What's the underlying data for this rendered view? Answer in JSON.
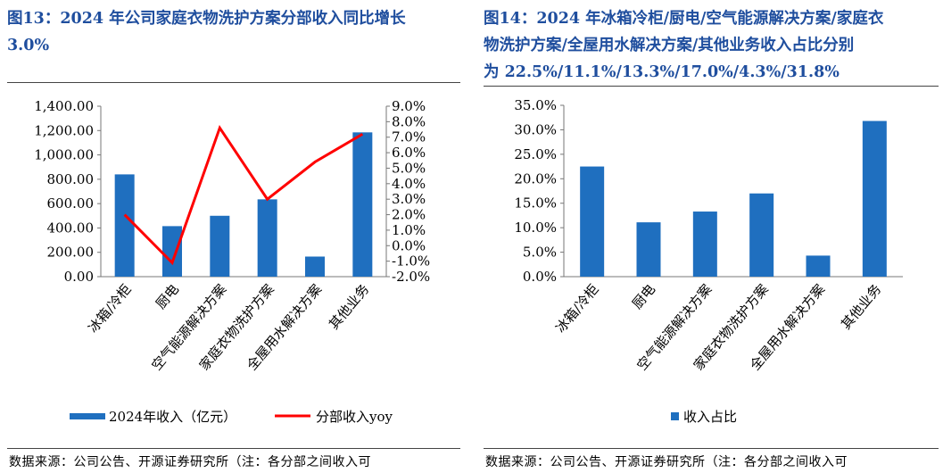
{
  "left_panel": {
    "title_line1": "图13：2024 年公司家庭衣物洗护方案分部收入同比增长",
    "title_line2": "3.0%",
    "source": "数据来源：公司公告、开源证券研究所（注：各分部之间收入可"
  },
  "right_panel": {
    "title_line1": "图14：2024 年冰箱冷柜/厨电/空气能源解决方案/家庭衣",
    "title_line2": "物洗护方案/全屋用水解决方案/其他业务收入占比分别",
    "title_line3": "为 22.5%/11.1%/13.3%/17.0%/4.3%/31.8%",
    "source": "数据来源：公司公告、开源证券研究所（注：各分部之间收入可"
  },
  "chart_data": [
    {
      "type": "bar+line",
      "categories": [
        "冰箱/冷柜",
        "厨电",
        "空气能源解决方案",
        "家庭衣物洗护方案",
        "全屋用水解决方案",
        "其他业务"
      ],
      "series": [
        {
          "name": "2024年收入（亿元）",
          "type": "bar",
          "axis": "left",
          "color": "#1f6fbf",
          "values": [
            840,
            415,
            500,
            635,
            165,
            1185
          ]
        },
        {
          "name": "分部收入yoy",
          "type": "line",
          "axis": "right",
          "color": "#ff0000",
          "values": [
            2.0,
            -1.1,
            7.6,
            3.0,
            5.4,
            7.2
          ]
        }
      ],
      "left_axis": {
        "ylim": [
          0,
          1400
        ],
        "ticks": [
          "0.00",
          "200.00",
          "400.00",
          "600.00",
          "800.00",
          "1,000.00",
          "1,200.00",
          "1,400.00"
        ]
      },
      "right_axis": {
        "ylim": [
          -2.0,
          9.0
        ],
        "ticks": [
          "-2.0%",
          "-1.0%",
          "0.0%",
          "1.0%",
          "2.0%",
          "3.0%",
          "4.0%",
          "5.0%",
          "6.0%",
          "7.0%",
          "8.0%",
          "9.0%"
        ]
      },
      "legend": "bottom",
      "grid": false
    },
    {
      "type": "bar",
      "categories": [
        "冰箱/冷柜",
        "厨电",
        "空气能源解决方案",
        "家庭衣物洗护方案",
        "全屋用水解决方案",
        "其他业务"
      ],
      "series": [
        {
          "name": "收入占比",
          "color": "#1f6fbf",
          "values": [
            22.5,
            11.1,
            13.3,
            17.0,
            4.3,
            31.8
          ]
        }
      ],
      "ylim": [
        0,
        35
      ],
      "ticks": [
        "0.0%",
        "5.0%",
        "10.0%",
        "15.0%",
        "20.0%",
        "25.0%",
        "30.0%",
        "35.0%"
      ],
      "legend": "bottom",
      "grid": false
    }
  ]
}
